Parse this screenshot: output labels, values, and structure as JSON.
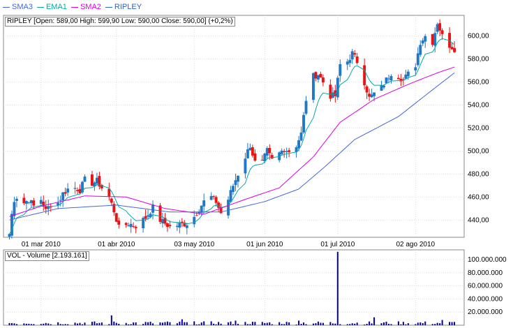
{
  "legend": [
    {
      "label": "SMA3",
      "color": "#4466dd"
    },
    {
      "label": "EMA1",
      "color": "#00aaaa"
    },
    {
      "label": "SMA2",
      "color": "#dd00dd"
    },
    {
      "label": "RIPLEY",
      "color": "#2266cc"
    }
  ],
  "price_panel": {
    "header": "RIPLEY [Open: 589,00  High: 599,90  Low: 590,00  Close: 590,00] (+0,2%)"
  },
  "volume_panel": {
    "header": "VOL - Volume [2.193.161]"
  },
  "colors": {
    "up": "#1f78c8",
    "down": "#ee1111",
    "volume": "#0000aa",
    "sma3": "#4466dd",
    "ema1": "#00aaaa",
    "sma2": "#dd00dd"
  },
  "chart_data": [
    {
      "type": "candlestick",
      "name": "RIPLEY",
      "ylim": [
        425,
        618
      ],
      "yticks": [
        440,
        460,
        480,
        500,
        520,
        540,
        560,
        580,
        600
      ],
      "ytick_labels": [
        "440,00",
        "460,00",
        "480,00",
        "500,00",
        "520,00",
        "540,00",
        "560,00",
        "580,00",
        "600,00"
      ],
      "x_start": "2010-02-15",
      "x_end": "2010-08-20",
      "xticks": [
        "2010-03-01",
        "2010-04-01",
        "2010-05-03",
        "2010-06-01",
        "2010-07-01",
        "2010-08-02"
      ],
      "xtick_labels": [
        "01 mar 2010",
        "01 abr 2010",
        "03 may 2010",
        "01 jun 2010",
        "01 jul 2010",
        "02 ago 2010"
      ],
      "grid": true,
      "anchors": [
        [
          "2010-02-16",
          428
        ],
        [
          "2010-02-17",
          445
        ],
        [
          "2010-02-18",
          458
        ],
        [
          "2010-02-19",
          460
        ],
        [
          "2010-02-22",
          455
        ],
        [
          "2010-02-24",
          458
        ],
        [
          "2010-02-26",
          452
        ],
        [
          "2010-03-01",
          458
        ],
        [
          "2010-03-03",
          448
        ],
        [
          "2010-03-05",
          454
        ],
        [
          "2010-03-08",
          455
        ],
        [
          "2010-03-10",
          463
        ],
        [
          "2010-03-12",
          467
        ],
        [
          "2010-03-15",
          468
        ],
        [
          "2010-03-17",
          466
        ],
        [
          "2010-03-19",
          475
        ],
        [
          "2010-03-22",
          472
        ],
        [
          "2010-03-24",
          474
        ],
        [
          "2010-03-26",
          468
        ],
        [
          "2010-03-29",
          460
        ],
        [
          "2010-03-31",
          448
        ],
        [
          "2010-04-02",
          433
        ],
        [
          "2010-04-06",
          437
        ],
        [
          "2010-04-09",
          435
        ],
        [
          "2010-04-13",
          442
        ],
        [
          "2010-04-16",
          451
        ],
        [
          "2010-04-19",
          440
        ],
        [
          "2010-04-21",
          437
        ],
        [
          "2010-04-23",
          434
        ],
        [
          "2010-04-27",
          436
        ],
        [
          "2010-04-30",
          437
        ],
        [
          "2010-05-03",
          443
        ],
        [
          "2010-05-05",
          450
        ],
        [
          "2010-05-07",
          456
        ],
        [
          "2010-05-10",
          460
        ],
        [
          "2010-05-12",
          456
        ],
        [
          "2010-05-14",
          446
        ],
        [
          "2010-05-17",
          458
        ],
        [
          "2010-05-19",
          470
        ],
        [
          "2010-05-21",
          480
        ],
        [
          "2010-05-24",
          495
        ],
        [
          "2010-05-26",
          505
        ],
        [
          "2010-05-28",
          490
        ],
        [
          "2010-05-31",
          490
        ],
        [
          "2010-06-02",
          500
        ],
        [
          "2010-06-04",
          492
        ],
        [
          "2010-06-07",
          498
        ],
        [
          "2010-06-09",
          502
        ],
        [
          "2010-06-11",
          500
        ],
        [
          "2010-06-14",
          505
        ],
        [
          "2010-06-16",
          515
        ],
        [
          "2010-06-18",
          545
        ],
        [
          "2010-06-21",
          565
        ],
        [
          "2010-06-23",
          567
        ],
        [
          "2010-06-25",
          560
        ],
        [
          "2010-06-28",
          548
        ],
        [
          "2010-06-30",
          548
        ],
        [
          "2010-07-02",
          575
        ],
        [
          "2010-07-05",
          578
        ],
        [
          "2010-07-07",
          585
        ],
        [
          "2010-07-09",
          578
        ],
        [
          "2010-07-12",
          560
        ],
        [
          "2010-07-14",
          546
        ],
        [
          "2010-07-16",
          550
        ],
        [
          "2010-07-19",
          555
        ],
        [
          "2010-07-21",
          562
        ],
        [
          "2010-07-23",
          568
        ],
        [
          "2010-07-26",
          565
        ],
        [
          "2010-07-28",
          562
        ],
        [
          "2010-07-30",
          567
        ],
        [
          "2010-08-02",
          575
        ],
        [
          "2010-08-04",
          595
        ],
        [
          "2010-08-06",
          600
        ],
        [
          "2010-08-09",
          595
        ],
        [
          "2010-08-11",
          612
        ],
        [
          "2010-08-13",
          600
        ],
        [
          "2010-08-16",
          592
        ],
        [
          "2010-08-18",
          589
        ]
      ],
      "sma3": [
        [
          "2010-02-16",
          440
        ],
        [
          "2010-03-08",
          450
        ],
        [
          "2010-04-01",
          453
        ],
        [
          "2010-04-23",
          447
        ],
        [
          "2010-05-14",
          447
        ],
        [
          "2010-06-01",
          456
        ],
        [
          "2010-06-15",
          467
        ],
        [
          "2010-06-25",
          485
        ],
        [
          "2010-07-08",
          510
        ],
        [
          "2010-07-26",
          530
        ],
        [
          "2010-08-04",
          545
        ],
        [
          "2010-08-18",
          568
        ]
      ],
      "sma2": [
        [
          "2010-02-16",
          443
        ],
        [
          "2010-03-01",
          452
        ],
        [
          "2010-03-19",
          461
        ],
        [
          "2010-04-05",
          460
        ],
        [
          "2010-04-21",
          450
        ],
        [
          "2010-05-07",
          445
        ],
        [
          "2010-05-24",
          458
        ],
        [
          "2010-06-07",
          468
        ],
        [
          "2010-06-21",
          495
        ],
        [
          "2010-07-02",
          525
        ],
        [
          "2010-07-16",
          545
        ],
        [
          "2010-07-30",
          558
        ],
        [
          "2010-08-11",
          568
        ],
        [
          "2010-08-18",
          573
        ]
      ]
    },
    {
      "type": "bar",
      "name": "VOL - Volume",
      "ylim": [
        0,
        115000000
      ],
      "yticks": [
        20000000,
        40000000,
        60000000,
        80000000,
        100000000
      ],
      "ytick_labels": [
        "20.000.000",
        "40.000.000",
        "60.000.000",
        "80.000.000",
        "100.000.000"
      ],
      "spikes": [
        [
          "2010-03-30",
          15000000
        ],
        [
          "2010-04-28",
          9000000
        ],
        [
          "2010-05-20",
          7000000
        ],
        [
          "2010-06-15",
          7000000
        ],
        [
          "2010-07-01",
          112000000
        ],
        [
          "2010-07-16",
          12000000
        ],
        [
          "2010-08-13",
          8000000
        ]
      ],
      "base_min": 1000000,
      "base_max": 6000000
    }
  ]
}
